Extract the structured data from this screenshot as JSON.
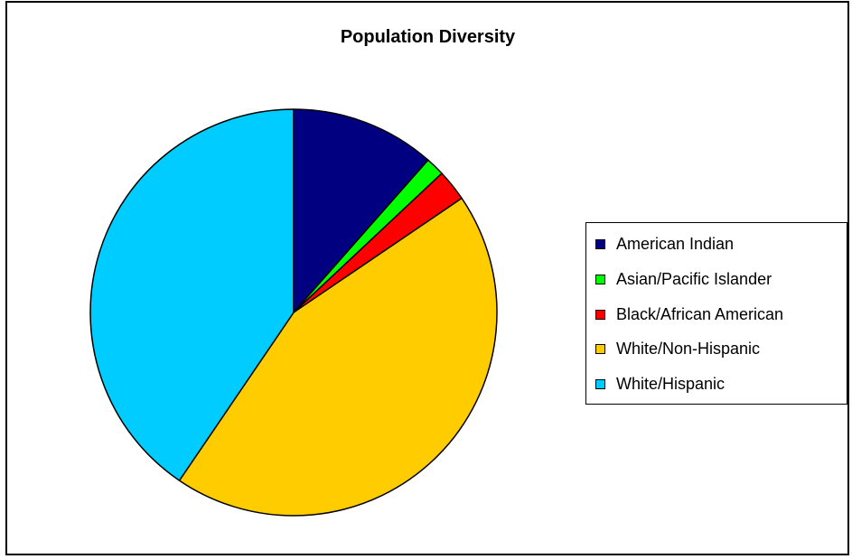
{
  "chart_data": {
    "type": "pie",
    "title": "Population Diversity",
    "legend_position": "right",
    "slices": [
      {
        "label": "American Indian",
        "value": 11.5,
        "color": "#000080"
      },
      {
        "label": "Asian/Pacific Islander",
        "value": 1.5,
        "color": "#00ff00"
      },
      {
        "label": "Black/African American",
        "value": 2.5,
        "color": "#ff0000"
      },
      {
        "label": "White/Non-Hispanic",
        "value": 44.0,
        "color": "#ffcc00"
      },
      {
        "label": "White/Hispanic",
        "value": 40.5,
        "color": "#00ccff"
      }
    ]
  }
}
